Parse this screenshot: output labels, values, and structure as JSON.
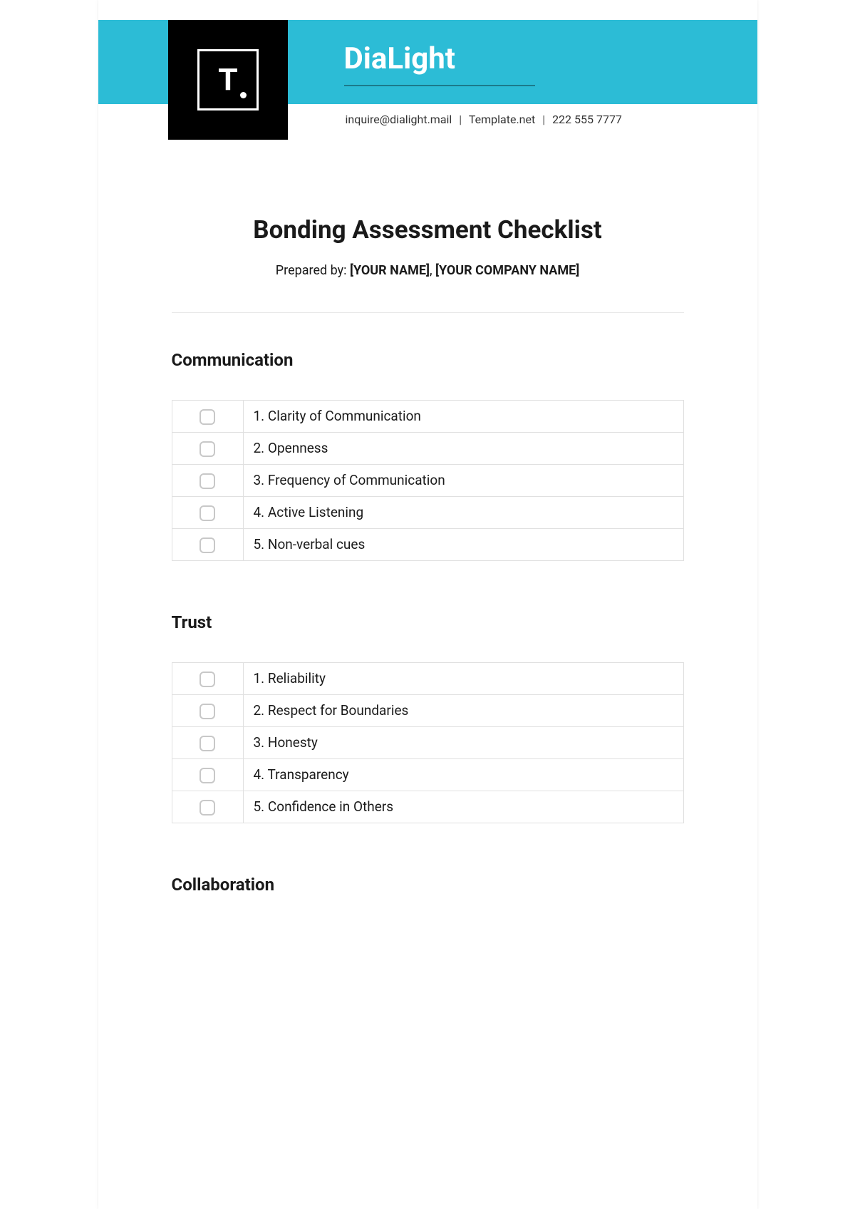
{
  "header": {
    "logo_letter": "T",
    "company": "DiaLight",
    "email": "inquire@dialight.mail",
    "website": "Template.net",
    "phone": "222 555 7777",
    "colors": {
      "banner": "#2cbcd6",
      "logo_bg": "#000000",
      "logo_fg": "#ffffff"
    }
  },
  "document": {
    "title": "Bonding Assessment Checklist",
    "prepared_prefix": "Prepared by: ",
    "prepared_name": "[YOUR NAME]",
    "prepared_sep": ", ",
    "prepared_company": "[YOUR COMPANY NAME]"
  },
  "sections": [
    {
      "title": "Communication",
      "items": [
        "1. Clarity of Communication",
        "2. Openness",
        "3. Frequency of Communication",
        "4. Active Listening",
        "5. Non-verbal cues"
      ]
    },
    {
      "title": "Trust",
      "items": [
        "1. Reliability",
        "2. Respect for Boundaries",
        "3. Honesty",
        "4. Transparency",
        "5. Confidence in Others"
      ]
    },
    {
      "title": "Collaboration",
      "items": []
    }
  ],
  "styles": {
    "checkbox_border": "#c8c8c8",
    "table_border": "#e0e0e0",
    "divider_color": "#e8e8e8",
    "title_fontsize": 35,
    "section_fontsize": 24,
    "item_fontsize": 19
  }
}
